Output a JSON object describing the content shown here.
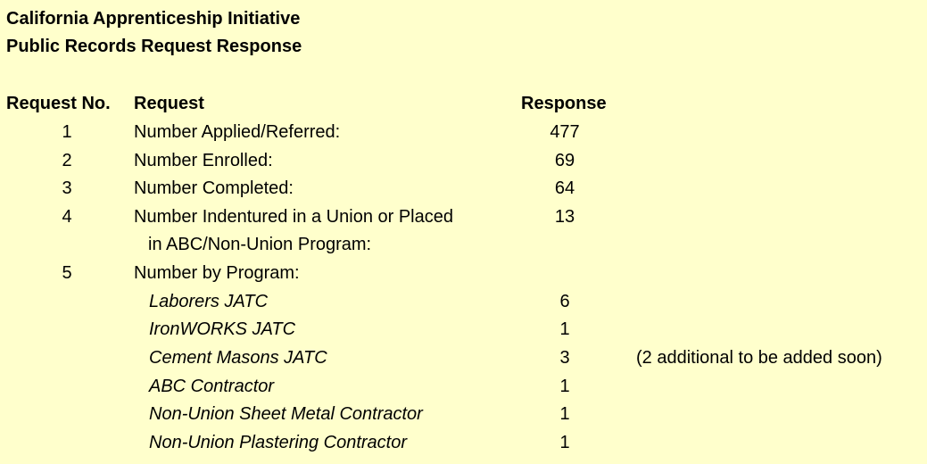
{
  "document": {
    "title_line1": "California Apprenticeship Initiative",
    "title_line2": "Public Records Request Response"
  },
  "table": {
    "headers": {
      "request_no": "Request No.",
      "request": "Request",
      "response": "Response"
    },
    "rows": [
      {
        "no": "1",
        "request": "Number Applied/Referred:",
        "response": "477"
      },
      {
        "no": "2",
        "request": "Number Enrolled:",
        "response": "69"
      },
      {
        "no": "3",
        "request": "Number Completed:",
        "response": "64"
      },
      {
        "no": "4",
        "request": "Number Indentured in a Union or Placed",
        "request_cont": "in ABC/Non-Union Program:",
        "response": "13"
      },
      {
        "no": "5",
        "request": "Number by Program:",
        "response": ""
      }
    ],
    "programs": [
      {
        "name": "Laborers JATC",
        "count": "6",
        "note": ""
      },
      {
        "name": "IronWORKS JATC",
        "count": "1",
        "note": ""
      },
      {
        "name": "Cement Masons JATC",
        "count": "3",
        "note": "(2 additional to be added soon)"
      },
      {
        "name": "ABC Contractor",
        "count": "1",
        "note": ""
      },
      {
        "name": "Non-Union Sheet Metal Contractor",
        "count": "1",
        "note": ""
      },
      {
        "name": "Non-Union Plastering Contractor",
        "count": "1",
        "note": ""
      }
    ]
  }
}
